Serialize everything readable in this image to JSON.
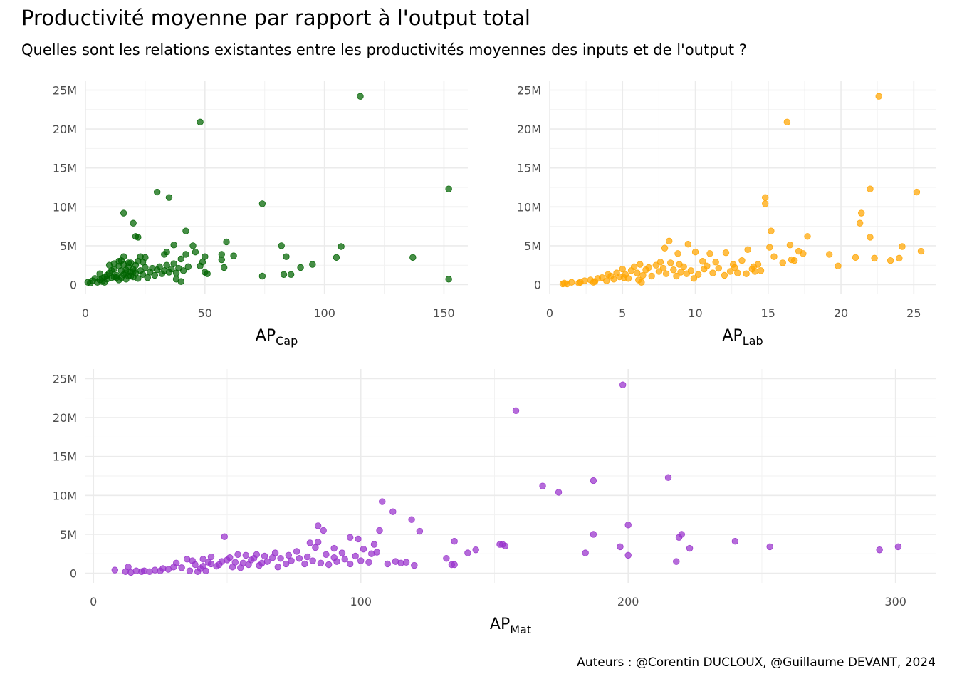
{
  "title": "Productivité moyenne par rapport à l'output total",
  "subtitle": "Quelles sont les relations existantes entre les productivités moyennes des inputs et de l'output ?",
  "caption": "Auteurs : @Corentin DUCLOUX, @Guillaume DEVANT, 2024",
  "chart_data": [
    {
      "type": "scatter",
      "xlabel_main": "AP",
      "xlabel_sub": "Cap",
      "color": "#006400",
      "xlim": [
        0,
        160
      ],
      "ylim": [
        0,
        25000000
      ],
      "x_ticks": [
        0,
        50,
        100,
        150
      ],
      "x_tick_labels": [
        "0",
        "50",
        "100",
        "150"
      ],
      "y_ticks": [
        0,
        5000000,
        10000000,
        15000000,
        20000000,
        25000000
      ],
      "y_tick_labels": [
        "0",
        "5M",
        "10M",
        "15M",
        "20M",
        "25M"
      ],
      "grid": true,
      "points": [
        [
          115,
          24200000
        ],
        [
          48,
          20900000
        ],
        [
          152,
          12300000
        ],
        [
          30,
          11900000
        ],
        [
          35,
          11200000
        ],
        [
          74,
          10400000
        ],
        [
          16,
          9200000
        ],
        [
          20,
          7900000
        ],
        [
          21,
          6200000
        ],
        [
          22,
          6100000
        ],
        [
          42,
          6900000
        ],
        [
          59,
          5500000
        ],
        [
          107,
          4900000
        ],
        [
          82,
          5000000
        ],
        [
          37,
          5100000
        ],
        [
          45,
          5000000
        ],
        [
          34,
          4200000
        ],
        [
          46,
          4200000
        ],
        [
          33,
          3900000
        ],
        [
          42,
          3900000
        ],
        [
          57,
          3900000
        ],
        [
          62,
          3700000
        ],
        [
          84,
          3600000
        ],
        [
          137,
          3500000
        ],
        [
          105,
          3500000
        ],
        [
          23,
          3600000
        ],
        [
          25,
          3500000
        ],
        [
          16,
          3600000
        ],
        [
          50,
          3600000
        ],
        [
          57,
          3200000
        ],
        [
          95,
          2600000
        ],
        [
          90,
          2200000
        ],
        [
          40,
          3300000
        ],
        [
          49,
          2900000
        ],
        [
          48,
          2400000
        ],
        [
          58,
          2200000
        ],
        [
          50,
          1600000
        ],
        [
          51,
          1400000
        ],
        [
          83,
          1300000
        ],
        [
          86,
          1300000
        ],
        [
          74,
          1100000
        ],
        [
          152,
          700000
        ],
        [
          38,
          700000
        ],
        [
          40,
          400000
        ],
        [
          1,
          300000
        ],
        [
          2,
          200000
        ],
        [
          3,
          500000
        ],
        [
          4,
          800000
        ],
        [
          5,
          300000
        ],
        [
          6,
          600000
        ],
        [
          7,
          400000
        ],
        [
          8,
          1000000
        ],
        [
          9,
          700000
        ],
        [
          10,
          1500000
        ],
        [
          11,
          900000
        ],
        [
          12,
          2000000
        ],
        [
          12,
          2700000
        ],
        [
          13,
          1200000
        ],
        [
          14,
          2400000
        ],
        [
          14,
          600000
        ],
        [
          15,
          1800000
        ],
        [
          15,
          900000
        ],
        [
          16,
          2600000
        ],
        [
          16,
          1300000
        ],
        [
          17,
          1900000
        ],
        [
          17,
          700000
        ],
        [
          18,
          1100000
        ],
        [
          18,
          2300000
        ],
        [
          19,
          1600000
        ],
        [
          19,
          2800000
        ],
        [
          20,
          1000000
        ],
        [
          20,
          2000000
        ],
        [
          21,
          1500000
        ],
        [
          21,
          2500000
        ],
        [
          22,
          800000
        ],
        [
          23,
          1800000
        ],
        [
          24,
          1300000
        ],
        [
          24,
          2900000
        ],
        [
          25,
          2200000
        ],
        [
          26,
          900000
        ],
        [
          27,
          1600000
        ],
        [
          28,
          2100000
        ],
        [
          29,
          1200000
        ],
        [
          30,
          1900000
        ],
        [
          31,
          2300000
        ],
        [
          32,
          1400000
        ],
        [
          33,
          1800000
        ],
        [
          34,
          2500000
        ],
        [
          35,
          1600000
        ],
        [
          36,
          2000000
        ],
        [
          37,
          2700000
        ],
        [
          38,
          1500000
        ],
        [
          39,
          2100000
        ],
        [
          41,
          1800000
        ],
        [
          43,
          2300000
        ],
        [
          10,
          2500000
        ],
        [
          11,
          1800000
        ],
        [
          13,
          900000
        ],
        [
          8,
          300000
        ],
        [
          9,
          1200000
        ],
        [
          6,
          1400000
        ],
        [
          15,
          3100000
        ],
        [
          14,
          3000000
        ],
        [
          22,
          3000000
        ],
        [
          18,
          2800000
        ],
        [
          20,
          1700000
        ],
        [
          19,
          1100000
        ],
        [
          17,
          1500000
        ],
        [
          12,
          1000000
        ],
        [
          7,
          800000
        ]
      ]
    },
    {
      "type": "scatter",
      "xlabel_main": "AP",
      "xlabel_sub": "Lab",
      "color": "#FFA500",
      "xlim": [
        0,
        26.5
      ],
      "ylim": [
        0,
        25000000
      ],
      "x_ticks": [
        0,
        5,
        10,
        15,
        20,
        25
      ],
      "x_tick_labels": [
        "0",
        "5",
        "10",
        "15",
        "20",
        "25"
      ],
      "y_ticks": [
        0,
        5000000,
        10000000,
        15000000,
        20000000,
        25000000
      ],
      "y_tick_labels": [
        "0",
        "5M",
        "10M",
        "15M",
        "20M",
        "25M"
      ],
      "grid": true,
      "points": [
        [
          22.6,
          24200000
        ],
        [
          16.3,
          20900000
        ],
        [
          22.0,
          12300000
        ],
        [
          25.2,
          11900000
        ],
        [
          14.8,
          11200000
        ],
        [
          14.8,
          10400000
        ],
        [
          21.4,
          9200000
        ],
        [
          21.3,
          7900000
        ],
        [
          22.0,
          6100000
        ],
        [
          15.2,
          6900000
        ],
        [
          17.7,
          6200000
        ],
        [
          8.2,
          5600000
        ],
        [
          9.5,
          5200000
        ],
        [
          24.2,
          4900000
        ],
        [
          25.5,
          4300000
        ],
        [
          15.1,
          4800000
        ],
        [
          16.5,
          5100000
        ],
        [
          7.9,
          4700000
        ],
        [
          8.8,
          4000000
        ],
        [
          10.0,
          4200000
        ],
        [
          11.0,
          4000000
        ],
        [
          12.1,
          4100000
        ],
        [
          13.6,
          4500000
        ],
        [
          17.1,
          4300000
        ],
        [
          17.4,
          4000000
        ],
        [
          19.2,
          3900000
        ],
        [
          21.0,
          3500000
        ],
        [
          22.3,
          3400000
        ],
        [
          23.4,
          3100000
        ],
        [
          24.0,
          3400000
        ],
        [
          19.8,
          2400000
        ],
        [
          15.4,
          3600000
        ],
        [
          16.0,
          2800000
        ],
        [
          16.6,
          3200000
        ],
        [
          13.2,
          3100000
        ],
        [
          14.3,
          2600000
        ],
        [
          14.0,
          2300000
        ],
        [
          12.7,
          2200000
        ],
        [
          11.4,
          2900000
        ],
        [
          10.5,
          3000000
        ],
        [
          1.0,
          200000
        ],
        [
          1.2,
          100000
        ],
        [
          1.5,
          300000
        ],
        [
          2.1,
          300000
        ],
        [
          2.4,
          500000
        ],
        [
          2.8,
          600000
        ],
        [
          3.1,
          400000
        ],
        [
          3.3,
          800000
        ],
        [
          3.6,
          900000
        ],
        [
          3.9,
          500000
        ],
        [
          4.2,
          1100000
        ],
        [
          4.4,
          700000
        ],
        [
          4.6,
          1500000
        ],
        [
          4.8,
          1000000
        ],
        [
          5.0,
          2000000
        ],
        [
          5.2,
          1300000
        ],
        [
          5.4,
          800000
        ],
        [
          5.6,
          1800000
        ],
        [
          5.8,
          2300000
        ],
        [
          6.0,
          1500000
        ],
        [
          6.2,
          2600000
        ],
        [
          6.4,
          1200000
        ],
        [
          6.6,
          1900000
        ],
        [
          6.8,
          2200000
        ],
        [
          7.0,
          1100000
        ],
        [
          7.3,
          2500000
        ],
        [
          7.5,
          1700000
        ],
        [
          7.8,
          2100000
        ],
        [
          8.0,
          1400000
        ],
        [
          8.3,
          2800000
        ],
        [
          8.5,
          1900000
        ],
        [
          8.7,
          1100000
        ],
        [
          9.0,
          1600000
        ],
        [
          9.2,
          2300000
        ],
        [
          9.4,
          1400000
        ],
        [
          9.7,
          1800000
        ],
        [
          10.2,
          1300000
        ],
        [
          10.6,
          2000000
        ],
        [
          11.2,
          1500000
        ],
        [
          11.6,
          2100000
        ],
        [
          12.0,
          1200000
        ],
        [
          12.4,
          1700000
        ],
        [
          12.9,
          1500000
        ],
        [
          13.5,
          1400000
        ],
        [
          13.9,
          2000000
        ],
        [
          14.5,
          1800000
        ],
        [
          6.1,
          600000
        ],
        [
          6.3,
          300000
        ],
        [
          5.1,
          900000
        ],
        [
          4.0,
          1300000
        ],
        [
          2.0,
          200000
        ],
        [
          0.9,
          100000
        ],
        [
          3.0,
          300000
        ],
        [
          7.6,
          2900000
        ],
        [
          8.9,
          2600000
        ],
        [
          10.8,
          2400000
        ],
        [
          12.6,
          2600000
        ],
        [
          14.1,
          1700000
        ],
        [
          16.8,
          3100000
        ],
        [
          9.9,
          800000
        ]
      ]
    },
    {
      "type": "scatter",
      "xlabel_main": "AP",
      "xlabel_sub": "Mat",
      "color": "#9932CC",
      "xlim": [
        -3,
        315
      ],
      "ylim": [
        0,
        25000000
      ],
      "x_ticks": [
        0,
        100,
        200,
        300
      ],
      "x_tick_labels": [
        "0",
        "100",
        "200",
        "300"
      ],
      "y_ticks": [
        0,
        5000000,
        10000000,
        15000000,
        20000000,
        25000000
      ],
      "y_tick_labels": [
        "0",
        "5M",
        "10M",
        "15M",
        "20M",
        "25M"
      ],
      "grid": true,
      "points": [
        [
          198,
          24200000
        ],
        [
          158,
          20900000
        ],
        [
          215,
          12300000
        ],
        [
          187,
          11900000
        ],
        [
          168,
          11200000
        ],
        [
          174,
          10400000
        ],
        [
          108,
          9200000
        ],
        [
          112,
          7900000
        ],
        [
          119,
          6900000
        ],
        [
          200,
          6200000
        ],
        [
          84,
          6100000
        ],
        [
          122,
          5400000
        ],
        [
          107,
          5500000
        ],
        [
          86,
          5500000
        ],
        [
          187,
          5000000
        ],
        [
          220,
          5000000
        ],
        [
          219,
          4600000
        ],
        [
          49,
          4700000
        ],
        [
          96,
          4600000
        ],
        [
          99,
          4400000
        ],
        [
          81,
          3900000
        ],
        [
          84,
          4000000
        ],
        [
          135,
          4100000
        ],
        [
          240,
          4100000
        ],
        [
          152,
          3700000
        ],
        [
          153,
          3700000
        ],
        [
          154,
          3500000
        ],
        [
          253,
          3400000
        ],
        [
          197,
          3400000
        ],
        [
          301,
          3400000
        ],
        [
          294,
          3000000
        ],
        [
          223,
          3200000
        ],
        [
          90,
          3200000
        ],
        [
          105,
          3700000
        ],
        [
          143,
          3000000
        ],
        [
          140,
          2600000
        ],
        [
          184,
          2600000
        ],
        [
          200,
          2300000
        ],
        [
          132,
          1900000
        ],
        [
          134,
          1100000
        ],
        [
          135,
          1100000
        ],
        [
          218,
          1500000
        ],
        [
          8,
          400000
        ],
        [
          12,
          200000
        ],
        [
          13,
          800000
        ],
        [
          14,
          100000
        ],
        [
          16,
          300000
        ],
        [
          18,
          200000
        ],
        [
          19,
          300000
        ],
        [
          21,
          200000
        ],
        [
          23,
          400000
        ],
        [
          25,
          300000
        ],
        [
          26,
          600000
        ],
        [
          28,
          500000
        ],
        [
          30,
          800000
        ],
        [
          31,
          1300000
        ],
        [
          33,
          700000
        ],
        [
          35,
          1800000
        ],
        [
          37,
          1600000
        ],
        [
          38,
          1100000
        ],
        [
          40,
          600000
        ],
        [
          41,
          1800000
        ],
        [
          42,
          300000
        ],
        [
          43,
          1400000
        ],
        [
          44,
          2100000
        ],
        [
          46,
          900000
        ],
        [
          47,
          1100000
        ],
        [
          48,
          1500000
        ],
        [
          50,
          1700000
        ],
        [
          51,
          2000000
        ],
        [
          53,
          1400000
        ],
        [
          54,
          2400000
        ],
        [
          55,
          700000
        ],
        [
          57,
          2300000
        ],
        [
          58,
          1100000
        ],
        [
          60,
          1900000
        ],
        [
          61,
          2400000
        ],
        [
          63,
          1300000
        ],
        [
          64,
          2200000
        ],
        [
          65,
          1500000
        ],
        [
          67,
          2000000
        ],
        [
          68,
          2600000
        ],
        [
          69,
          800000
        ],
        [
          70,
          1900000
        ],
        [
          72,
          1200000
        ],
        [
          73,
          2300000
        ],
        [
          74,
          1600000
        ],
        [
          76,
          2800000
        ],
        [
          77,
          1900000
        ],
        [
          79,
          1200000
        ],
        [
          80,
          2100000
        ],
        [
          82,
          1600000
        ],
        [
          83,
          3300000
        ],
        [
          85,
          1300000
        ],
        [
          87,
          2400000
        ],
        [
          88,
          1100000
        ],
        [
          90,
          2000000
        ],
        [
          91,
          1500000
        ],
        [
          93,
          2600000
        ],
        [
          94,
          1800000
        ],
        [
          96,
          1200000
        ],
        [
          98,
          2200000
        ],
        [
          100,
          1600000
        ],
        [
          101,
          3100000
        ],
        [
          103,
          1400000
        ],
        [
          104,
          2500000
        ],
        [
          106,
          2700000
        ],
        [
          110,
          1200000
        ],
        [
          113,
          1500000
        ],
        [
          115,
          1300000
        ],
        [
          117,
          1400000
        ],
        [
          120,
          1000000
        ],
        [
          36,
          300000
        ],
        [
          39,
          200000
        ],
        [
          41,
          900000
        ],
        [
          44,
          1200000
        ],
        [
          52,
          800000
        ],
        [
          56,
          1300000
        ],
        [
          59,
          1700000
        ],
        [
          62,
          1000000
        ]
      ]
    }
  ]
}
